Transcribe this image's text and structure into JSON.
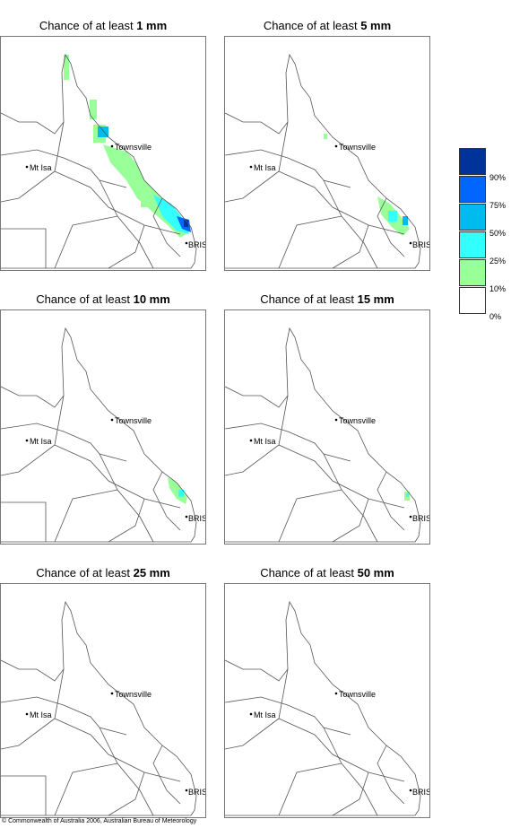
{
  "panels": [
    {
      "prefix": "Chance of at least ",
      "amount": "1 mm"
    },
    {
      "prefix": "Chance of at least ",
      "amount": "5 mm"
    },
    {
      "prefix": "Chance of at least ",
      "amount": "10 mm"
    },
    {
      "prefix": "Chance of at least ",
      "amount": "15 mm"
    },
    {
      "prefix": "Chance of at least ",
      "amount": "25 mm"
    },
    {
      "prefix": "Chance of at least ",
      "amount": "50 mm"
    }
  ],
  "places": {
    "townsville": "Townsville",
    "mt_isa": "Mt Isa",
    "brisbane": "BRIS"
  },
  "legend": {
    "labels": [
      "90%",
      "75%",
      "50%",
      "25%",
      "10%",
      "0%"
    ],
    "colors": [
      "#003399",
      "#0066ff",
      "#00bbee",
      "#33ffff",
      "#99ff99",
      "#ffffff"
    ]
  },
  "footer": "© Commonwealth of Australia 2006, Australian Bureau of Meteorology"
}
